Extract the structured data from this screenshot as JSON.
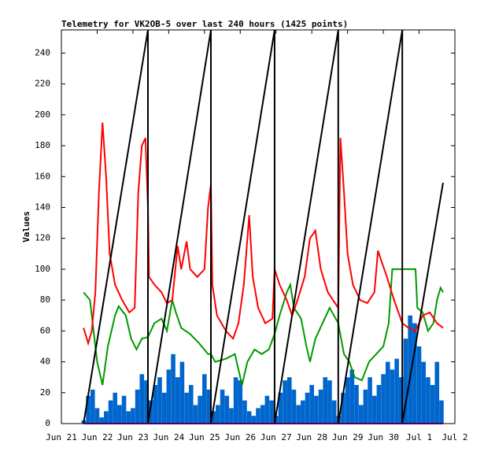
{
  "chart_data": {
    "type": "line",
    "title": "Telemetry for VK2OB-5 over last 240 hours (1425 points)",
    "ylabel": "Values",
    "xlim": [
      0,
      11
    ],
    "xticks": [
      {
        "value": 0,
        "label": "Jun 21"
      },
      {
        "value": 1,
        "label": "Jun 22"
      },
      {
        "value": 2,
        "label": "Jun 23"
      },
      {
        "value": 3,
        "label": "Jun 24"
      },
      {
        "value": 4,
        "label": "Jun 25"
      },
      {
        "value": 5,
        "label": "Jun 26"
      },
      {
        "value": 6,
        "label": "Jun 27"
      },
      {
        "value": 7,
        "label": "Jun 28"
      },
      {
        "value": 8,
        "label": "Jun 29"
      },
      {
        "value": 9,
        "label": "Jun 30"
      },
      {
        "value": 10,
        "label": "Jul 1"
      },
      {
        "value": 11,
        "label": "Jul 2"
      }
    ],
    "ylim": [
      0,
      255
    ],
    "yticks": [
      0,
      20,
      40,
      60,
      80,
      100,
      120,
      140,
      160,
      180,
      200,
      220,
      240
    ],
    "series": [
      {
        "type": "bar",
        "color": "#0066cc",
        "x": [
          0.625,
          0.75,
          0.875,
          1.0,
          1.125,
          1.25,
          1.375,
          1.5,
          1.625,
          1.75,
          1.875,
          2.0,
          2.125,
          2.25,
          2.375,
          2.5,
          2.625,
          2.75,
          2.875,
          3.0,
          3.125,
          3.25,
          3.375,
          3.5,
          3.625,
          3.75,
          3.875,
          4.0,
          4.125,
          4.25,
          4.375,
          4.5,
          4.625,
          4.75,
          4.875,
          5.0,
          5.125,
          5.25,
          5.375,
          5.5,
          5.625,
          5.75,
          5.875,
          6.0,
          6.125,
          6.25,
          6.375,
          6.5,
          6.625,
          6.75,
          6.875,
          7.0,
          7.125,
          7.25,
          7.375,
          7.5,
          7.625,
          7.75,
          7.875,
          8.0,
          8.125,
          8.25,
          8.375,
          8.5,
          8.625,
          8.75,
          8.875,
          9.0,
          9.125,
          9.25,
          9.375,
          9.5,
          9.625,
          9.75,
          9.875,
          10.0,
          10.125,
          10.25,
          10.375,
          10.5,
          10.625
        ],
        "values": [
          2,
          18,
          22,
          10,
          4,
          8,
          15,
          20,
          12,
          18,
          8,
          10,
          22,
          32,
          28,
          15,
          25,
          30,
          20,
          35,
          45,
          30,
          40,
          20,
          25,
          12,
          18,
          32,
          22,
          8,
          12,
          22,
          18,
          10,
          30,
          28,
          15,
          8,
          5,
          10,
          12,
          18,
          15,
          5,
          20,
          28,
          30,
          22,
          12,
          15,
          20,
          25,
          18,
          22,
          30,
          28,
          15,
          5,
          20,
          30,
          35,
          25,
          12,
          22,
          30,
          18,
          25,
          32,
          40,
          35,
          42,
          30,
          55,
          70,
          65,
          50,
          40,
          30,
          25,
          40,
          15
        ]
      },
      {
        "color": "#009900",
        "x": [
          0.62,
          0.8,
          0.9,
          1.0,
          1.15,
          1.3,
          1.5,
          1.6,
          1.8,
          1.95,
          2.1,
          2.25,
          2.42,
          2.6,
          2.8,
          2.95,
          3.1,
          3.2,
          3.35,
          3.6,
          3.85,
          4.1,
          4.18,
          4.3,
          4.6,
          4.85,
          4.95,
          5.05,
          5.2,
          5.4,
          5.6,
          5.8,
          5.96,
          6.1,
          6.3,
          6.4,
          6.5,
          6.7,
          6.85,
          6.95,
          7.1,
          7.3,
          7.5,
          7.74,
          7.9,
          8.05,
          8.2,
          8.4,
          8.6,
          8.8,
          9.0,
          9.15,
          9.25,
          9.9,
          9.95,
          10.1,
          10.25,
          10.4,
          10.5,
          10.6,
          10.67
        ],
        "values": [
          85,
          80,
          60,
          40,
          25,
          50,
          70,
          76,
          70,
          55,
          48,
          55,
          56,
          65,
          68,
          60,
          80,
          72,
          62,
          58,
          52,
          45,
          45,
          40,
          42,
          45,
          35,
          25,
          40,
          48,
          45,
          48,
          58,
          70,
          85,
          90,
          75,
          68,
          50,
          40,
          55,
          65,
          75,
          65,
          45,
          40,
          30,
          28,
          40,
          45,
          50,
          65,
          100,
          100,
          75,
          72,
          60,
          65,
          80,
          88,
          85
        ]
      },
      {
        "color": "#ff0000",
        "x": [
          0.62,
          0.75,
          0.85,
          0.95,
          1.05,
          1.15,
          1.25,
          1.35,
          1.5,
          1.7,
          1.9,
          2.05,
          2.15,
          2.25,
          2.35,
          2.42,
          2.45,
          2.6,
          2.8,
          2.95,
          3.1,
          3.25,
          3.35,
          3.5,
          3.6,
          3.8,
          4.0,
          4.1,
          4.18,
          4.22,
          4.35,
          4.6,
          4.8,
          4.95,
          5.1,
          5.25,
          5.35,
          5.5,
          5.7,
          5.9,
          5.96,
          6.1,
          6.3,
          6.45,
          6.6,
          6.8,
          6.95,
          7.1,
          7.25,
          7.45,
          7.65,
          7.74,
          7.8,
          7.9,
          8.0,
          8.15,
          8.35,
          8.55,
          8.75,
          8.85,
          8.95,
          9.1,
          9.3,
          9.53,
          9.7,
          9.9,
          10.1,
          10.3,
          10.5,
          10.67
        ],
        "values": [
          62,
          52,
          60,
          85,
          150,
          195,
          160,
          110,
          90,
          80,
          72,
          75,
          150,
          180,
          185,
          140,
          95,
          90,
          85,
          78,
          80,
          115,
          100,
          118,
          100,
          95,
          100,
          140,
          155,
          90,
          70,
          60,
          55,
          65,
          90,
          135,
          95,
          75,
          65,
          68,
          100,
          90,
          80,
          70,
          80,
          95,
          120,
          125,
          100,
          85,
          78,
          75,
          185,
          150,
          110,
          90,
          80,
          78,
          85,
          112,
          105,
          95,
          80,
          65,
          62,
          60,
          70,
          72,
          65,
          62
        ]
      },
      {
        "color": "#000000",
        "x": [
          0.62,
          2.42,
          2.42,
          4.18,
          4.18,
          5.96,
          5.96,
          7.74,
          7.74,
          9.53,
          9.53,
          10.67
        ],
        "values": [
          0,
          255,
          0,
          255,
          0,
          255,
          0,
          255,
          0,
          255,
          0,
          156
        ]
      },
      {
        "color": "#9900cc",
        "x": [
          0.62,
          10.67
        ],
        "values": [
          0,
          0
        ]
      }
    ]
  }
}
